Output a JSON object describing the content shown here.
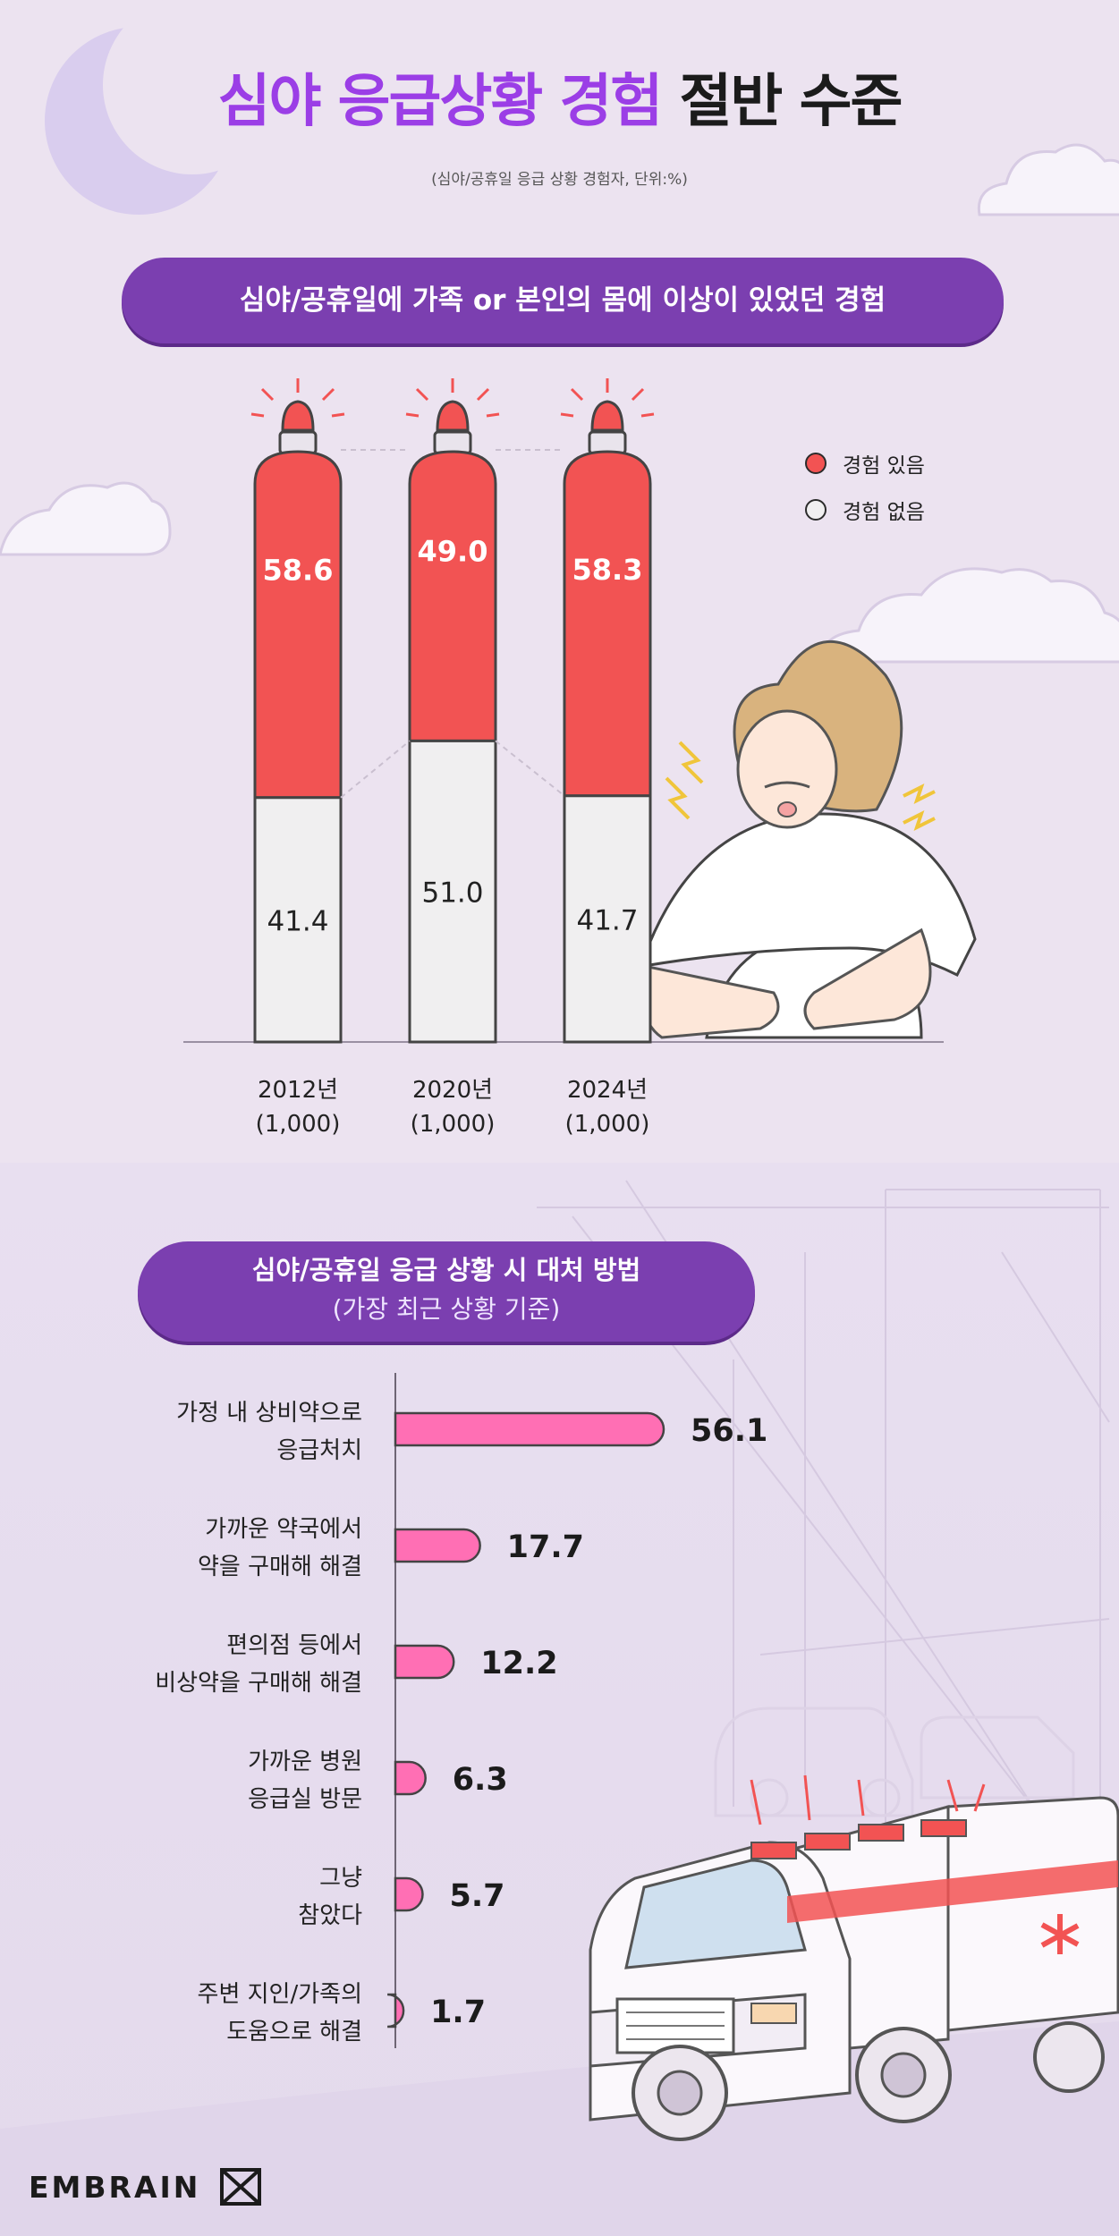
{
  "header": {
    "title_highlight": "심야 응급상황 경험",
    "title_rest": "절반 수준",
    "subtitle": "(심야/공휴일 응급 상황 경험자, 단위:%)"
  },
  "section1": {
    "pill_label": "심야/공휴일에 가족 or 본인의 몸에 이상이 있었던 경험"
  },
  "section2": {
    "pill_line1": "심야/공휴일 응급 상황 시 대처 방법",
    "pill_line2": "(가장 최근 상황 기준)"
  },
  "colors": {
    "accent_purple": "#9b3ee6",
    "pill_purple": "#7b3fb0",
    "red": "#f25353",
    "light_gray": "#f0eff0",
    "pink": "#ff6fb4"
  },
  "chart_data": [
    {
      "type": "bar",
      "stacked": true,
      "categories": [
        "2012년",
        "2020년",
        "2024년"
      ],
      "category_sublabels": [
        "(1,000)",
        "(1,000)",
        "(1,000)"
      ],
      "series": [
        {
          "name": "경험 있음",
          "values": [
            58.6,
            49.0,
            58.3
          ],
          "color": "#f25353"
        },
        {
          "name": "경험 없음",
          "values": [
            41.4,
            51.0,
            41.7
          ],
          "color": "#f0eff0"
        }
      ],
      "value_labels": [
        [
          "58.6",
          "49.0",
          "58.3"
        ],
        [
          "41.4",
          "51.0",
          "41.7"
        ]
      ],
      "legend_position": "top-right",
      "ylim": [
        0,
        100
      ]
    },
    {
      "type": "bar",
      "orientation": "horizontal",
      "categories": [
        [
          "가정 내 상비약으로",
          "응급처치"
        ],
        [
          "가까운 약국에서",
          "약을 구매해 해결"
        ],
        [
          "편의점 등에서",
          "비상약을 구매해 해결"
        ],
        [
          "가까운 병원",
          "응급실 방문"
        ],
        [
          "그냥",
          "참았다"
        ],
        [
          "주변 지인/가족의",
          "도움으로 해결"
        ]
      ],
      "values": [
        56.1,
        17.7,
        12.2,
        6.3,
        5.7,
        1.7
      ],
      "value_labels": [
        "56.1",
        "17.7",
        "12.2",
        "6.3",
        "5.7",
        "1.7"
      ],
      "color": "#ff6fb4",
      "xlim": [
        0,
        56.1
      ]
    }
  ],
  "brand": {
    "logo_text": "EMBRAIN",
    "logo_icon": "embrain-mark-icon"
  }
}
